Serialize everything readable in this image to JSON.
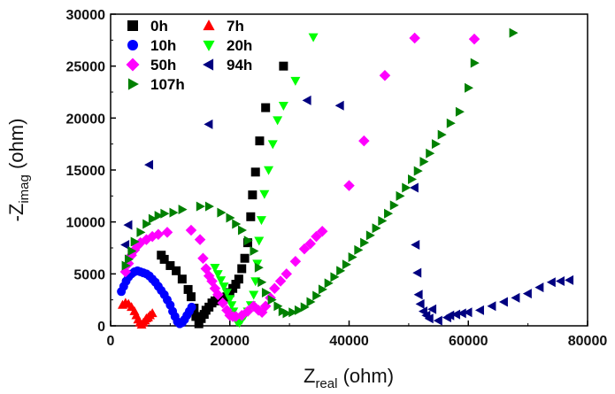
{
  "chart_data": {
    "type": "scatter",
    "title": "",
    "xlabel": {
      "main": "Z",
      "sub": "real",
      "unit": " (ohm)"
    },
    "ylabel": {
      "main": "-Z",
      "sub": "imag",
      "unit": " (ohm)"
    },
    "xlim": [
      0,
      80000
    ],
    "ylim": [
      0,
      30000
    ],
    "xticks": [
      0,
      20000,
      40000,
      60000,
      80000
    ],
    "yticks": [
      0,
      5000,
      10000,
      15000,
      20000,
      25000,
      30000
    ],
    "xtick_labels": [
      "0",
      "20000",
      "40000",
      "60000",
      "80000"
    ],
    "ytick_labels": [
      "0",
      "5000",
      "10000",
      "15000",
      "20000",
      "25000",
      "30000"
    ],
    "grid": false,
    "legend_position": "top-left",
    "series": [
      {
        "name": "0h",
        "marker": "square",
        "color": "#000000",
        "points": [
          [
            14800,
            200
          ],
          [
            15200,
            700
          ],
          [
            15700,
            1100
          ],
          [
            16000,
            1500
          ],
          [
            16500,
            1800
          ],
          [
            17000,
            2200
          ],
          [
            17500,
            2400
          ],
          [
            18000,
            2500
          ],
          [
            18500,
            2500
          ],
          [
            19000,
            2600
          ],
          [
            19500,
            2800
          ],
          [
            20000,
            3200
          ],
          [
            20500,
            3600
          ],
          [
            21000,
            4000
          ],
          [
            21500,
            4500
          ],
          [
            22000,
            5500
          ],
          [
            22500,
            6500
          ],
          [
            23000,
            8000
          ],
          [
            23500,
            10500
          ],
          [
            23800,
            12600
          ],
          [
            24300,
            14800
          ],
          [
            25000,
            17800
          ],
          [
            26000,
            21000
          ],
          [
            29000,
            25000
          ],
          [
            8500,
            6800
          ],
          [
            9000,
            6400
          ],
          [
            10000,
            5800
          ],
          [
            11000,
            5300
          ],
          [
            12000,
            4500
          ],
          [
            13000,
            3500
          ],
          [
            13500,
            2800
          ],
          [
            14000,
            1700
          ],
          [
            14300,
            900
          ]
        ]
      },
      {
        "name": "7h",
        "marker": "triangle-up",
        "color": "#ff0000",
        "points": [
          [
            2000,
            2000
          ],
          [
            2500,
            2200
          ],
          [
            3000,
            2100
          ],
          [
            3500,
            1800
          ],
          [
            4000,
            1400
          ],
          [
            4300,
            1000
          ],
          [
            4600,
            600
          ],
          [
            4900,
            300
          ],
          [
            5200,
            100
          ],
          [
            5500,
            300
          ],
          [
            5800,
            500
          ],
          [
            6000,
            700
          ],
          [
            6300,
            800
          ],
          [
            6600,
            1000
          ],
          [
            7000,
            1200
          ]
        ]
      },
      {
        "name": "10h",
        "marker": "circle",
        "color": "#0000ff",
        "points": [
          [
            1800,
            3300
          ],
          [
            2200,
            3800
          ],
          [
            2600,
            4300
          ],
          [
            3000,
            4700
          ],
          [
            3500,
            5000
          ],
          [
            4000,
            5200
          ],
          [
            4500,
            5300
          ],
          [
            5000,
            5200
          ],
          [
            5500,
            5100
          ],
          [
            6000,
            5000
          ],
          [
            6500,
            4800
          ],
          [
            7000,
            4500
          ],
          [
            7500,
            4200
          ],
          [
            8000,
            3800
          ],
          [
            8500,
            3400
          ],
          [
            9000,
            3000
          ],
          [
            9500,
            2500
          ],
          [
            10000,
            2000
          ],
          [
            10400,
            1400
          ],
          [
            10800,
            900
          ],
          [
            11200,
            400
          ],
          [
            11600,
            200
          ],
          [
            12000,
            300
          ],
          [
            12400,
            600
          ],
          [
            12800,
            1000
          ],
          [
            13200,
            1400
          ],
          [
            13600,
            1800
          ]
        ]
      },
      {
        "name": "20h",
        "marker": "triangle-down",
        "color": "#00ff00",
        "points": [
          [
            17500,
            5600
          ],
          [
            18000,
            5000
          ],
          [
            18500,
            4400
          ],
          [
            19000,
            3800
          ],
          [
            19500,
            3200
          ],
          [
            20000,
            2600
          ],
          [
            20300,
            2000
          ],
          [
            20600,
            1400
          ],
          [
            20900,
            800
          ],
          [
            21200,
            400
          ],
          [
            21600,
            300
          ],
          [
            22000,
            600
          ],
          [
            22500,
            1000
          ],
          [
            23000,
            1400
          ],
          [
            23500,
            2000
          ],
          [
            24000,
            3000
          ],
          [
            24300,
            4300
          ],
          [
            24600,
            6000
          ],
          [
            24900,
            8200
          ],
          [
            25300,
            10200
          ],
          [
            25800,
            12700
          ],
          [
            26500,
            15000
          ],
          [
            27200,
            17500
          ],
          [
            28000,
            19800
          ],
          [
            29000,
            21200
          ],
          [
            31000,
            23600
          ],
          [
            34000,
            27800
          ]
        ]
      },
      {
        "name": "50h",
        "marker": "diamond",
        "color": "#ff00ff",
        "points": [
          [
            2500,
            5200
          ],
          [
            3000,
            6000
          ],
          [
            3500,
            6800
          ],
          [
            4000,
            7300
          ],
          [
            4500,
            7700
          ],
          [
            5000,
            8000
          ],
          [
            6000,
            8300
          ],
          [
            7000,
            8600
          ],
          [
            8000,
            8800
          ],
          [
            9500,
            9000
          ],
          [
            13500,
            9200
          ],
          [
            15000,
            8300
          ],
          [
            15500,
            6500
          ],
          [
            16000,
            5500
          ],
          [
            16500,
            4800
          ],
          [
            17000,
            4300
          ],
          [
            17500,
            3600
          ],
          [
            18000,
            3000
          ],
          [
            18800,
            2200
          ],
          [
            19500,
            1500
          ],
          [
            20000,
            1000
          ],
          [
            20500,
            900
          ],
          [
            21000,
            900
          ],
          [
            22000,
            1000
          ],
          [
            23000,
            1400
          ],
          [
            24000,
            1900
          ],
          [
            24800,
            1500
          ],
          [
            25400,
            1300
          ],
          [
            26000,
            1900
          ],
          [
            26800,
            2700
          ],
          [
            27500,
            3600
          ],
          [
            28500,
            4300
          ],
          [
            29500,
            5000
          ],
          [
            31000,
            6200
          ],
          [
            32500,
            7400
          ],
          [
            33500,
            7900
          ],
          [
            34500,
            8600
          ],
          [
            35500,
            9100
          ],
          [
            40000,
            13500
          ],
          [
            42500,
            17800
          ],
          [
            46000,
            24100
          ],
          [
            51000,
            27700
          ],
          [
            61000,
            27600
          ]
        ]
      },
      {
        "name": "94h",
        "marker": "triangle-left",
        "color": "#000080",
        "points": [
          [
            2500,
            7800
          ],
          [
            3000,
            9700
          ],
          [
            6500,
            15500
          ],
          [
            16500,
            19400
          ],
          [
            33000,
            21700
          ],
          [
            38500,
            21200
          ],
          [
            51000,
            13300
          ],
          [
            51200,
            7800
          ],
          [
            51500,
            5100
          ],
          [
            51700,
            3000
          ],
          [
            52000,
            2100
          ],
          [
            52500,
            1400
          ],
          [
            53000,
            1000
          ],
          [
            53500,
            700
          ],
          [
            54000,
            1600
          ],
          [
            55000,
            500
          ],
          [
            56500,
            800
          ],
          [
            57000,
            1000
          ],
          [
            58000,
            1100
          ],
          [
            59000,
            1200
          ],
          [
            60000,
            1300
          ],
          [
            62000,
            1500
          ],
          [
            64000,
            1900
          ],
          [
            66000,
            2300
          ],
          [
            68000,
            2700
          ],
          [
            70000,
            3100
          ],
          [
            72000,
            3700
          ],
          [
            74000,
            4200
          ],
          [
            75500,
            4300
          ],
          [
            77000,
            4400
          ]
        ]
      },
      {
        "name": "107h",
        "marker": "triangle-right",
        "color": "#008000",
        "points": [
          [
            2500,
            5800
          ],
          [
            3000,
            6400
          ],
          [
            3500,
            7200
          ],
          [
            4000,
            8100
          ],
          [
            5000,
            9000
          ],
          [
            6000,
            9800
          ],
          [
            7000,
            10300
          ],
          [
            8000,
            10600
          ],
          [
            9000,
            10800
          ],
          [
            10500,
            10900
          ],
          [
            12000,
            11200
          ],
          [
            15000,
            11500
          ],
          [
            16500,
            11500
          ],
          [
            18500,
            10900
          ],
          [
            20000,
            10400
          ],
          [
            21000,
            9800
          ],
          [
            22000,
            9200
          ],
          [
            23000,
            8200
          ],
          [
            24000,
            7200
          ],
          [
            24800,
            5600
          ],
          [
            25300,
            4200
          ],
          [
            26000,
            3200
          ],
          [
            27000,
            2500
          ],
          [
            28000,
            1900
          ],
          [
            28800,
            1400
          ],
          [
            29500,
            1200
          ],
          [
            30500,
            1300
          ],
          [
            31500,
            1500
          ],
          [
            32500,
            1800
          ],
          [
            33500,
            2300
          ],
          [
            34500,
            2900
          ],
          [
            35500,
            3500
          ],
          [
            36500,
            4100
          ],
          [
            37500,
            4700
          ],
          [
            38500,
            5300
          ],
          [
            39500,
            5900
          ],
          [
            40500,
            6600
          ],
          [
            41500,
            7300
          ],
          [
            42500,
            8000
          ],
          [
            43500,
            8700
          ],
          [
            44500,
            9400
          ],
          [
            45500,
            10100
          ],
          [
            46500,
            10800
          ],
          [
            47500,
            11600
          ],
          [
            48500,
            12500
          ],
          [
            49500,
            13300
          ],
          [
            50500,
            14100
          ],
          [
            51500,
            14900
          ],
          [
            52500,
            15800
          ],
          [
            53500,
            16600
          ],
          [
            54500,
            17500
          ],
          [
            55500,
            18400
          ],
          [
            57000,
            19500
          ],
          [
            58500,
            20600
          ],
          [
            60000,
            22900
          ],
          [
            61000,
            25300
          ],
          [
            67500,
            28200
          ]
        ]
      }
    ]
  }
}
